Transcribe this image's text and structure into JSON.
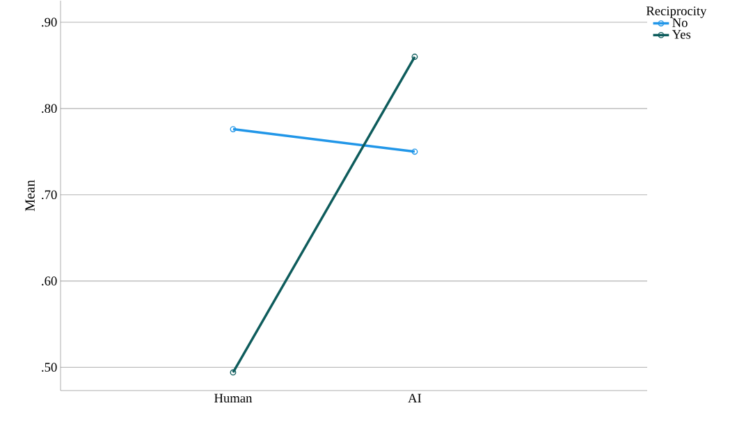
{
  "chart_data": {
    "type": "line",
    "ylabel": "Mean",
    "legend_title": "Reciprocity",
    "categories": [
      "Human",
      "AI"
    ],
    "series": [
      {
        "name": "No",
        "color": "#2196e8",
        "values": [
          0.776,
          0.75
        ]
      },
      {
        "name": "Yes",
        "color": "#0e5c5c",
        "values": [
          0.494,
          0.86
        ]
      }
    ],
    "ylim": [
      0.473,
      0.925
    ],
    "yticks": [
      {
        "value": 0.5,
        "label": ".50"
      },
      {
        "value": 0.6,
        "label": ".60"
      },
      {
        "value": 0.7,
        "label": ".70"
      },
      {
        "value": 0.8,
        "label": ".80"
      },
      {
        "value": 0.9,
        "label": ".90"
      }
    ],
    "grid": "y",
    "legend": "top right",
    "marker": "circle",
    "line_style": "solid"
  }
}
